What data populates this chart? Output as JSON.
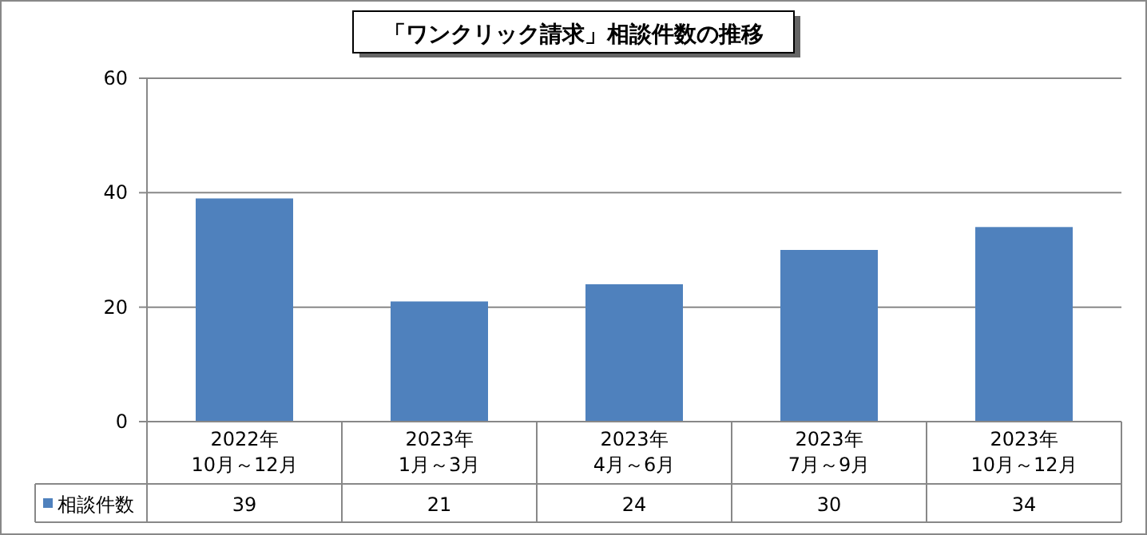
{
  "chart_data": {
    "type": "bar",
    "title": "「ワンクリック請求」相談件数の推移",
    "categories": [
      "2022年\n10月～12月",
      "2023年\n1月～3月",
      "2023年\n4月～6月",
      "2023年\n7月～9月",
      "2023年\n10月～12月"
    ],
    "series": [
      {
        "name": "相談件数",
        "color": "#4f81bd",
        "values": [
          39,
          21,
          24,
          30,
          34
        ]
      }
    ],
    "ylim": [
      0,
      60
    ],
    "yticks": [
      0,
      20,
      40,
      60
    ],
    "grid": "y",
    "data_labels": true,
    "legend": "bottom left"
  }
}
